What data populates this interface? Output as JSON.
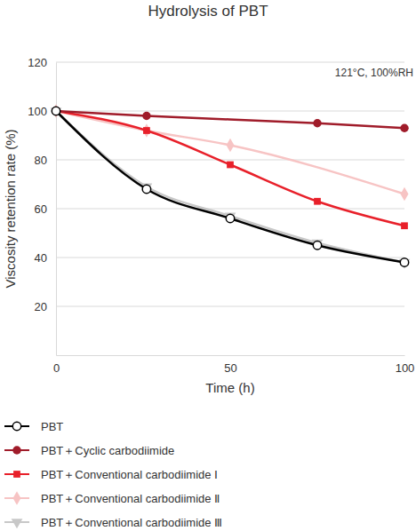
{
  "chart_data": {
    "type": "line",
    "title": "Hydrolysis of PBT",
    "subtitle": "121°C, 100%RH",
    "x_label": "Time (h)",
    "y_label": "Viscosity retention rate (%)",
    "xlim": [
      0,
      100
    ],
    "xticks": [
      0,
      50,
      100
    ],
    "ylim": [
      0,
      120
    ],
    "yticks": [
      20,
      40,
      60,
      80,
      100,
      120
    ],
    "grid": true,
    "legend": "bottom",
    "series": [
      {
        "name": "PBT",
        "color": "#000000",
        "marker": "circle-open",
        "line_style": "solid",
        "x": [
          0,
          26,
          50,
          75,
          100
        ],
        "values": [
          100,
          68,
          56,
          45,
          38
        ]
      },
      {
        "name": "PBT＋Cyclic carbodiimide",
        "color": "#a01c2a",
        "marker": "circle",
        "line_style": "solid",
        "x": [
          0,
          26,
          75,
          100
        ],
        "values": [
          100,
          98,
          95,
          93
        ]
      },
      {
        "name": "PBT＋Conventional carbodiimide Ⅰ",
        "color": "#e8202a",
        "marker": "square",
        "line_style": "solid",
        "x": [
          0,
          26,
          50,
          75,
          100
        ],
        "values": [
          100,
          92,
          78,
          63,
          53
        ]
      },
      {
        "name": "PBT＋Conventional carbodiimide Ⅱ",
        "color": "#f7c4c4",
        "marker": "diamond",
        "line_style": "solid",
        "x": [
          0,
          26,
          50,
          100
        ],
        "values": [
          100,
          92,
          86,
          66
        ]
      },
      {
        "name": "PBT＋Conventional carbodiimide Ⅲ",
        "color": "#c8c8c8",
        "marker": "triangle-down",
        "line_style": "solid",
        "x": [
          0,
          26,
          50,
          75,
          100
        ],
        "values": [
          100,
          69,
          57,
          46,
          38
        ]
      }
    ]
  }
}
